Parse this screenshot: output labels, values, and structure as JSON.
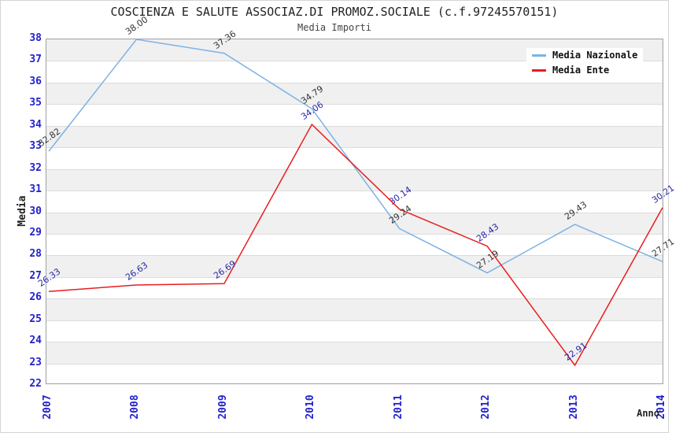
{
  "header": {
    "title": "COSCIENZA E SALUTE ASSOCIAZ.DI PROMOZ.SOCIALE (c.f.97245570151)",
    "subtitle": "Media Importi"
  },
  "chart_data": {
    "type": "line",
    "title": "COSCIENZA E SALUTE ASSOCIAZ.DI PROMOZ.SOCIALE (c.f.97245570151)",
    "subtitle": "Media Importi",
    "x_label": "Anno",
    "y_label": "Media",
    "x": [
      "2007",
      "2008",
      "2009",
      "2010",
      "2011",
      "2012",
      "2013",
      "2014"
    ],
    "ylim": [
      22,
      38
    ],
    "y_tick_step": 1,
    "y_tick_labels": [
      "38",
      "37",
      "36",
      "35",
      "34",
      "33",
      "32",
      "31",
      "30",
      "29",
      "28",
      "27",
      "26",
      "25",
      "24",
      "23",
      "22"
    ],
    "grid": "striped-horizontal-bands",
    "legend_position": "top-right",
    "series": [
      {
        "name": "Media Nazionale",
        "color": "#7cb2e4",
        "label_color": "#333333",
        "values": [
          32.82,
          38.0,
          37.36,
          34.79,
          29.24,
          27.19,
          29.43,
          27.71
        ],
        "point_labels": [
          "32.82",
          "38.00",
          "37.36",
          "34.79",
          "29.24",
          "27.19",
          "29.43",
          "27.71"
        ]
      },
      {
        "name": "Media Ente",
        "color": "#e81e1e",
        "label_color": "#2626a9",
        "values": [
          26.33,
          26.63,
          26.69,
          34.06,
          30.14,
          28.43,
          22.91,
          30.21
        ],
        "point_labels": [
          "26.33",
          "26.63",
          "26.69",
          "34.06",
          "30.14",
          "28.43",
          "22.91",
          "30.21"
        ]
      }
    ],
    "colors": {
      "tick_label": "#2222cc",
      "axis_title": "#222222",
      "stripe_band": "#f0f0f0",
      "grid_line": "#dcdcdc",
      "plot_border": "#a0a0a0"
    }
  }
}
